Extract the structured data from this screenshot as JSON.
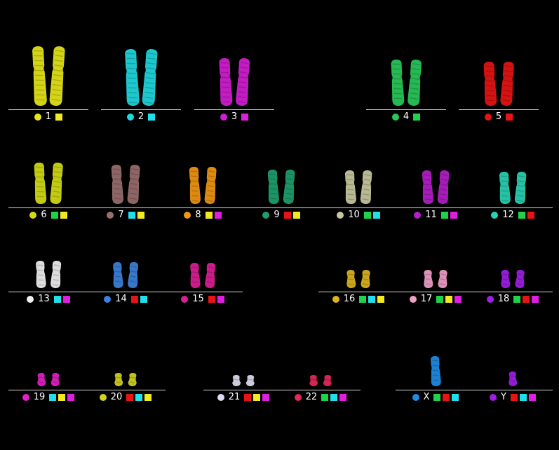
{
  "chromosomes": [
    {
      "id": "1",
      "color": "#e6e619",
      "probes": [
        "#f0ea1e"
      ],
      "size": 1.0
    },
    {
      "id": "2",
      "color": "#1fd8e0",
      "probes": [
        "#1fe0ea"
      ],
      "size": 0.95
    },
    {
      "id": "3",
      "color": "#d21ed2",
      "probes": [
        "#e01ee0"
      ],
      "size": 0.8
    },
    {
      "id": "4",
      "color": "#28c85a",
      "probes": [
        "#1ed24a"
      ],
      "size": 0.78
    },
    {
      "id": "5",
      "color": "#e61414",
      "probes": [
        "#e61414"
      ],
      "size": 0.74
    },
    {
      "id": "6",
      "color": "#d2dc14",
      "probes": [
        "#1ed24a",
        "#f0ea1e"
      ],
      "size": 0.7
    },
    {
      "id": "7",
      "color": "#9a6e6e",
      "probes": [
        "#1fe0ea",
        "#f0ea1e"
      ],
      "size": 0.66
    },
    {
      "id": "8",
      "color": "#f09614",
      "probes": [
        "#f0ea1e",
        "#e01ee0"
      ],
      "size": 0.62
    },
    {
      "id": "9",
      "color": "#1ea06e",
      "probes": [
        "#e61414",
        "#f0ea1e"
      ],
      "size": 0.58
    },
    {
      "id": "10",
      "color": "#c8c8a0",
      "probes": [
        "#1ed24a",
        "#1fe0ea"
      ],
      "size": 0.56
    },
    {
      "id": "11",
      "color": "#b41ec8",
      "probes": [
        "#1ed24a",
        "#e01ee0"
      ],
      "size": 0.56
    },
    {
      "id": "12",
      "color": "#28d2b4",
      "probes": [
        "#1ed24a",
        "#e61414"
      ],
      "size": 0.54
    },
    {
      "id": "13",
      "color": "#f0f0f0",
      "probes": [
        "#1fe0ea",
        "#e01ee0"
      ],
      "size": 0.46
    },
    {
      "id": "14",
      "color": "#3c82dc",
      "probes": [
        "#e61414",
        "#1fe0ea"
      ],
      "size": 0.43
    },
    {
      "id": "15",
      "color": "#dc1e96",
      "probes": [
        "#e61414",
        "#e01ee0"
      ],
      "size": 0.42
    },
    {
      "id": "16",
      "color": "#dcb41e",
      "probes": [
        "#1ed24a",
        "#1fe0ea",
        "#f0ea1e"
      ],
      "size": 0.3
    },
    {
      "id": "17",
      "color": "#f0a0c8",
      "probes": [
        "#1ed24a",
        "#f0ea1e",
        "#e01ee0"
      ],
      "size": 0.3
    },
    {
      "id": "18",
      "color": "#a01ee6",
      "probes": [
        "#1ed24a",
        "#e61414",
        "#e01ee0"
      ],
      "size": 0.3
    },
    {
      "id": "19",
      "color": "#e61ec8",
      "probes": [
        "#1fe0ea",
        "#f0ea1e",
        "#e01ee0"
      ],
      "size": 0.22
    },
    {
      "id": "20",
      "color": "#d2d21e",
      "probes": [
        "#e61414",
        "#1fe0ea",
        "#f0ea1e"
      ],
      "size": 0.22
    },
    {
      "id": "21",
      "color": "#dcdcf0",
      "probes": [
        "#e61414",
        "#f0ea1e",
        "#e01ee0"
      ],
      "size": 0.18
    },
    {
      "id": "22",
      "color": "#e6285a",
      "probes": [
        "#1ed24a",
        "#1fe0ea",
        "#e01ee0"
      ],
      "size": 0.18
    },
    {
      "id": "X",
      "color": "#1e8ce6",
      "probes": [
        "#1ed24a",
        "#e61414",
        "#1fe0ea"
      ],
      "size": 0.5
    },
    {
      "id": "Y",
      "color": "#a01ee6",
      "probes": [
        "#e61414",
        "#1fe0ea",
        "#e01ee0"
      ],
      "size": 0.25
    }
  ]
}
